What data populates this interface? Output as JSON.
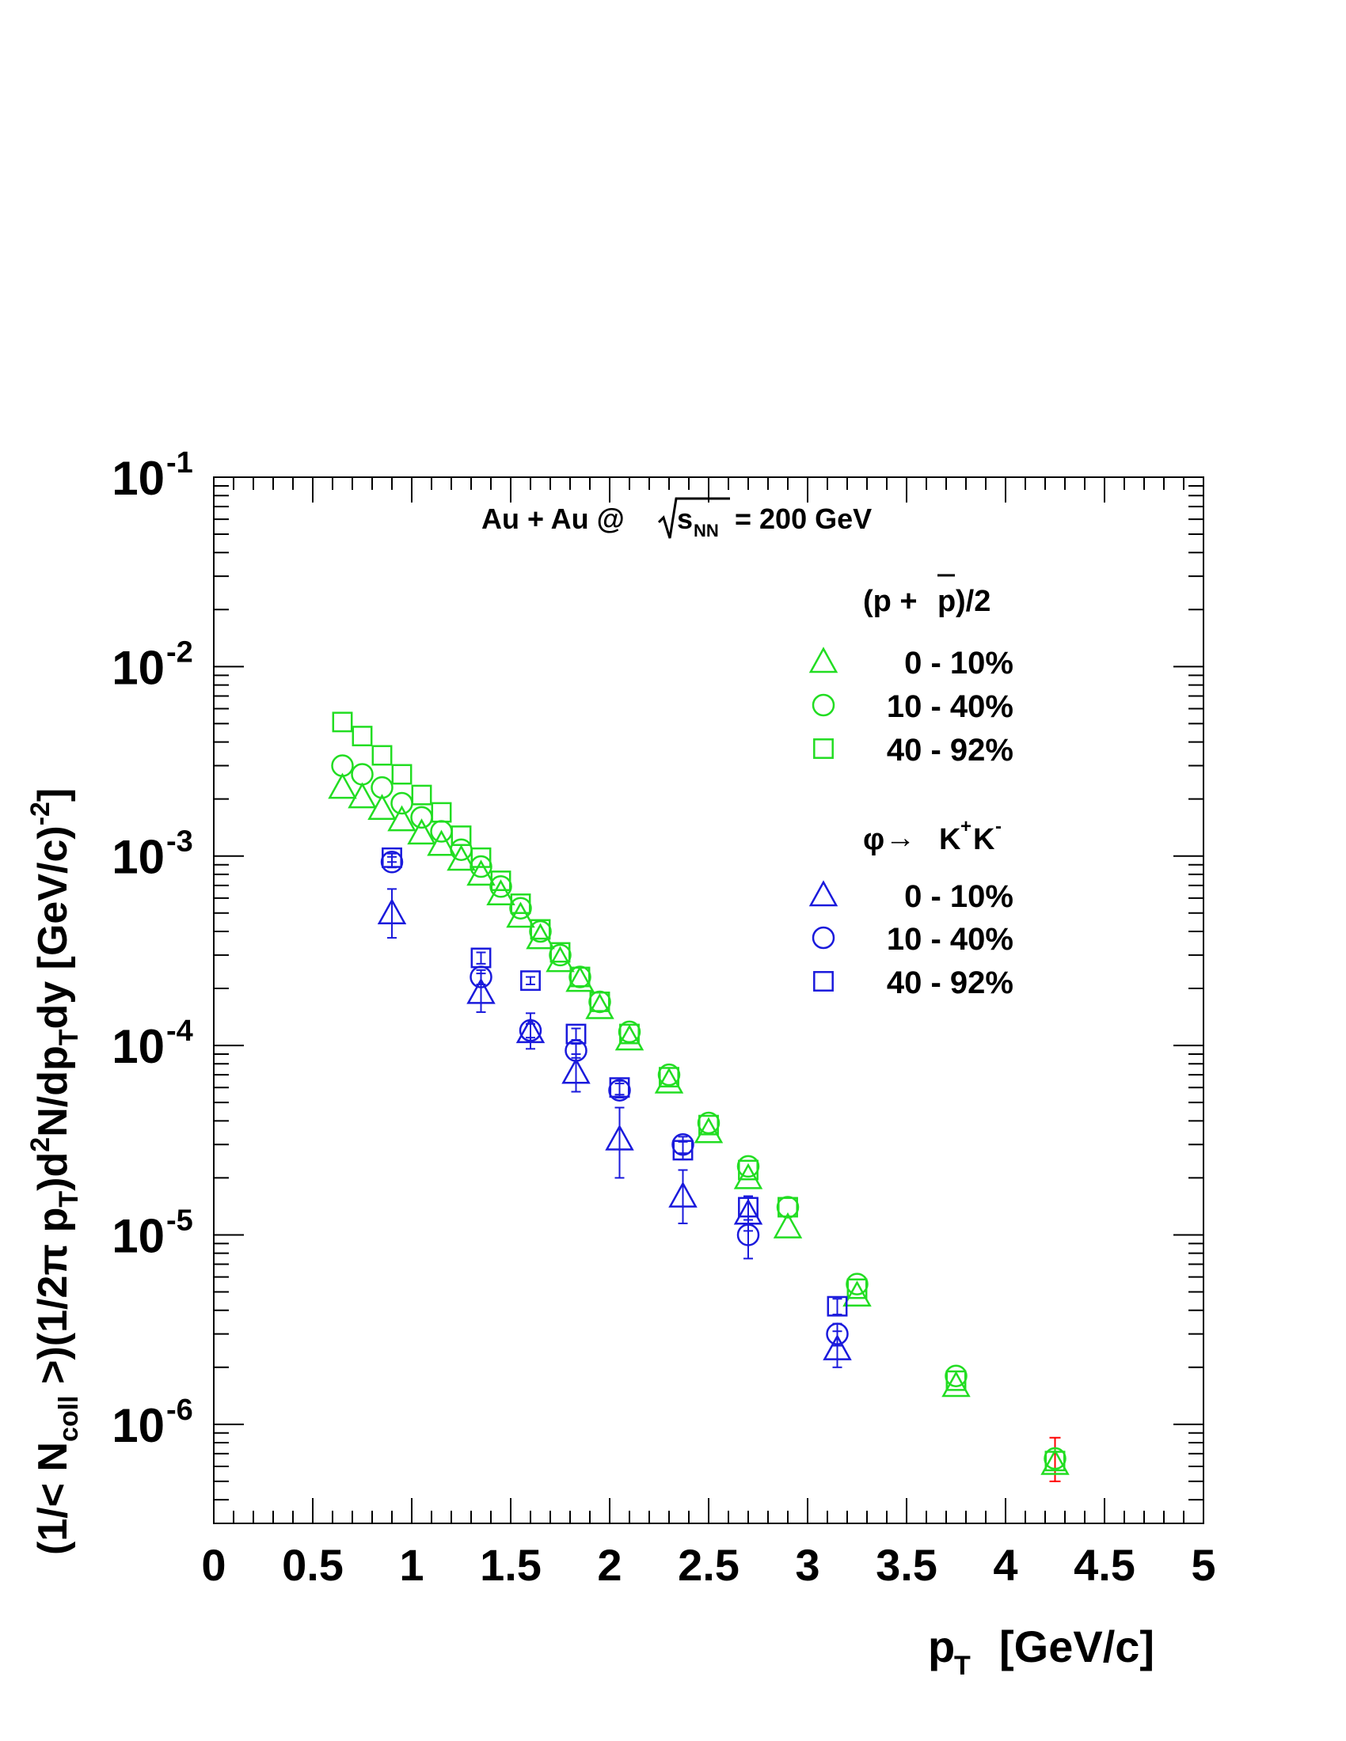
{
  "chart_data": {
    "type": "scatter",
    "title": "Au + Au @",
    "title_energy_symbol": "s",
    "title_energy_subscript": "NN",
    "title_energy_value": "= 200 GeV",
    "xlabel": "p",
    "xlabel_sub": "T",
    "xlabel_unit": "[GeV/c]",
    "ylabel_parts": [
      "(1/< N",
      "coll",
      " >)(1/2π p",
      "T",
      ")d",
      "2",
      "N/dp",
      "T",
      "dy [GeV/c)",
      "-2",
      "]"
    ],
    "xlim": [
      0,
      5
    ],
    "ylim": [
      3e-07,
      0.1
    ],
    "yscale": "log",
    "x_ticks": [
      "0",
      "0.5",
      "1",
      "1.5",
      "2",
      "2.5",
      "3",
      "3.5",
      "4",
      "4.5",
      "5"
    ],
    "y_ticks": [
      {
        "base": "10",
        "exp": "-1",
        "value": 0.1
      },
      {
        "base": "10",
        "exp": "-2",
        "value": 0.01
      },
      {
        "base": "10",
        "exp": "-3",
        "value": 0.001
      },
      {
        "base": "10",
        "exp": "-4",
        "value": 0.0001
      },
      {
        "base": "10",
        "exp": "-5",
        "value": 1e-05
      },
      {
        "base": "10",
        "exp": "-6",
        "value": 1e-06
      }
    ],
    "grid": false,
    "legend_position": "top-right",
    "legend": {
      "groups": [
        {
          "header_main": "(p + ",
          "header_bar": "p",
          "header_end": ")/2",
          "color": "#22dd22",
          "entries": [
            {
              "marker": "triangle",
              "label": "0 - 10%"
            },
            {
              "marker": "circle",
              "label": "10 - 40%"
            },
            {
              "marker": "square",
              "label": "40 - 92%"
            }
          ]
        },
        {
          "header_phi": "φ",
          "header_arrow": "→",
          "header_k1": "K",
          "header_sup1": "+",
          "header_k2": "K",
          "header_sup2": "-",
          "color": "#1a1adc",
          "entries": [
            {
              "marker": "triangle",
              "label": "0 - 10%"
            },
            {
              "marker": "circle",
              "label": "10 - 40%"
            },
            {
              "marker": "square",
              "label": "40 - 92%"
            }
          ]
        }
      ]
    },
    "colors": {
      "proton": "#22dd22",
      "phi": "#1a1adc",
      "error_extra": "#ff0000"
    },
    "series": [
      {
        "group": "proton",
        "marker": "triangle",
        "centrality": "0 - 10%",
        "x": [
          0.65,
          0.75,
          0.85,
          0.95,
          1.05,
          1.15,
          1.25,
          1.35,
          1.45,
          1.55,
          1.65,
          1.75,
          1.85,
          1.95,
          2.1,
          2.3,
          2.5,
          2.7,
          2.9,
          3.25,
          3.75,
          4.25
        ],
        "y": [
          0.0023,
          0.00205,
          0.00178,
          0.00155,
          0.00132,
          0.00115,
          0.00096,
          0.0008,
          0.00063,
          0.00048,
          0.00037,
          0.00028,
          0.00022,
          0.000158,
          0.000108,
          6.4e-05,
          3.5e-05,
          2e-05,
          1.1e-05,
          4.8e-06,
          1.6e-06,
          6.2e-07
        ]
      },
      {
        "group": "proton",
        "marker": "circle",
        "centrality": "10 - 40%",
        "x": [
          0.65,
          0.75,
          0.85,
          0.95,
          1.05,
          1.15,
          1.25,
          1.35,
          1.45,
          1.55,
          1.65,
          1.75,
          1.85,
          1.95,
          2.1,
          2.3,
          2.5,
          2.7,
          2.9,
          3.25,
          3.75,
          4.25
        ],
        "y": [
          0.003,
          0.0027,
          0.0023,
          0.0019,
          0.0016,
          0.00135,
          0.00108,
          0.00088,
          0.00069,
          0.00053,
          0.0004,
          0.0003,
          0.00023,
          0.00017,
          0.000118,
          7e-05,
          3.9e-05,
          2.3e-05,
          1.4e-05,
          5.5e-06,
          1.8e-06,
          6.6e-07
        ]
      },
      {
        "group": "proton",
        "marker": "square",
        "centrality": "40 - 92%",
        "x": [
          0.65,
          0.75,
          0.85,
          0.95,
          1.05,
          1.15,
          1.25,
          1.35,
          1.45,
          1.55,
          1.65,
          1.75,
          1.85,
          1.95,
          2.1,
          2.3,
          2.5,
          2.7,
          2.9,
          3.25,
          3.75,
          4.25
        ],
        "y": [
          0.0051,
          0.0043,
          0.0034,
          0.0027,
          0.0021,
          0.0017,
          0.00128,
          0.00098,
          0.00074,
          0.00056,
          0.00041,
          0.00031,
          0.00023,
          0.00017,
          0.000115,
          6.8e-05,
          3.8e-05,
          2.2e-05,
          1.4e-05,
          5.2e-06,
          1.7e-06,
          6.4e-07
        ]
      },
      {
        "group": "phi",
        "marker": "triangle",
        "centrality": "0 - 10%",
        "x": [
          0.9,
          1.35,
          1.6,
          1.83,
          2.05,
          2.37,
          2.7,
          3.15
        ],
        "y": [
          0.0005,
          0.00019,
          0.000118,
          7.2e-05,
          3.2e-05,
          1.6e-05,
          1.3e-05,
          2.5e-06
        ],
        "err_lo": [
          0.00013,
          4e-05,
          2.2e-05,
          1.5e-05,
          1.2e-05,
          4.5e-06,
          2.5e-06,
          5e-07
        ],
        "err_hi": [
          0.00017,
          5e-05,
          3e-05,
          1.8e-05,
          1.5e-05,
          6e-06,
          3e-06,
          6e-07
        ]
      },
      {
        "group": "phi",
        "marker": "circle",
        "centrality": "10 - 40%",
        "x": [
          0.9,
          1.35,
          1.6,
          1.83,
          2.05,
          2.37,
          2.7,
          3.15
        ],
        "y": [
          0.00093,
          0.00023,
          0.00012,
          9.4e-05,
          5.8e-05,
          3e-05,
          1e-05,
          3e-06
        ],
        "err_lo": [
          6e-05,
          2e-05,
          1e-05,
          8e-06,
          5e-06,
          3e-06,
          2.5e-06,
          4e-07
        ],
        "err_hi": [
          6e-05,
          2e-05,
          1e-05,
          8e-06,
          5e-06,
          3e-06,
          2.5e-06,
          4e-07
        ]
      },
      {
        "group": "phi",
        "marker": "square",
        "centrality": "40 - 92%",
        "x": [
          0.9,
          1.35,
          1.6,
          1.83,
          2.05,
          2.37,
          2.7,
          3.15
        ],
        "y": [
          0.00098,
          0.00029,
          0.00022,
          0.000115,
          6e-05,
          2.8e-05,
          1.4e-05,
          4.2e-06
        ],
        "err_lo": [
          5e-05,
          2e-05,
          1e-05,
          8e-06,
          5e-06,
          3e-06,
          2e-06,
          4e-07
        ],
        "err_hi": [
          5e-05,
          2e-05,
          1e-05,
          8e-06,
          5e-06,
          3e-06,
          2e-06,
          4e-07
        ]
      }
    ]
  }
}
